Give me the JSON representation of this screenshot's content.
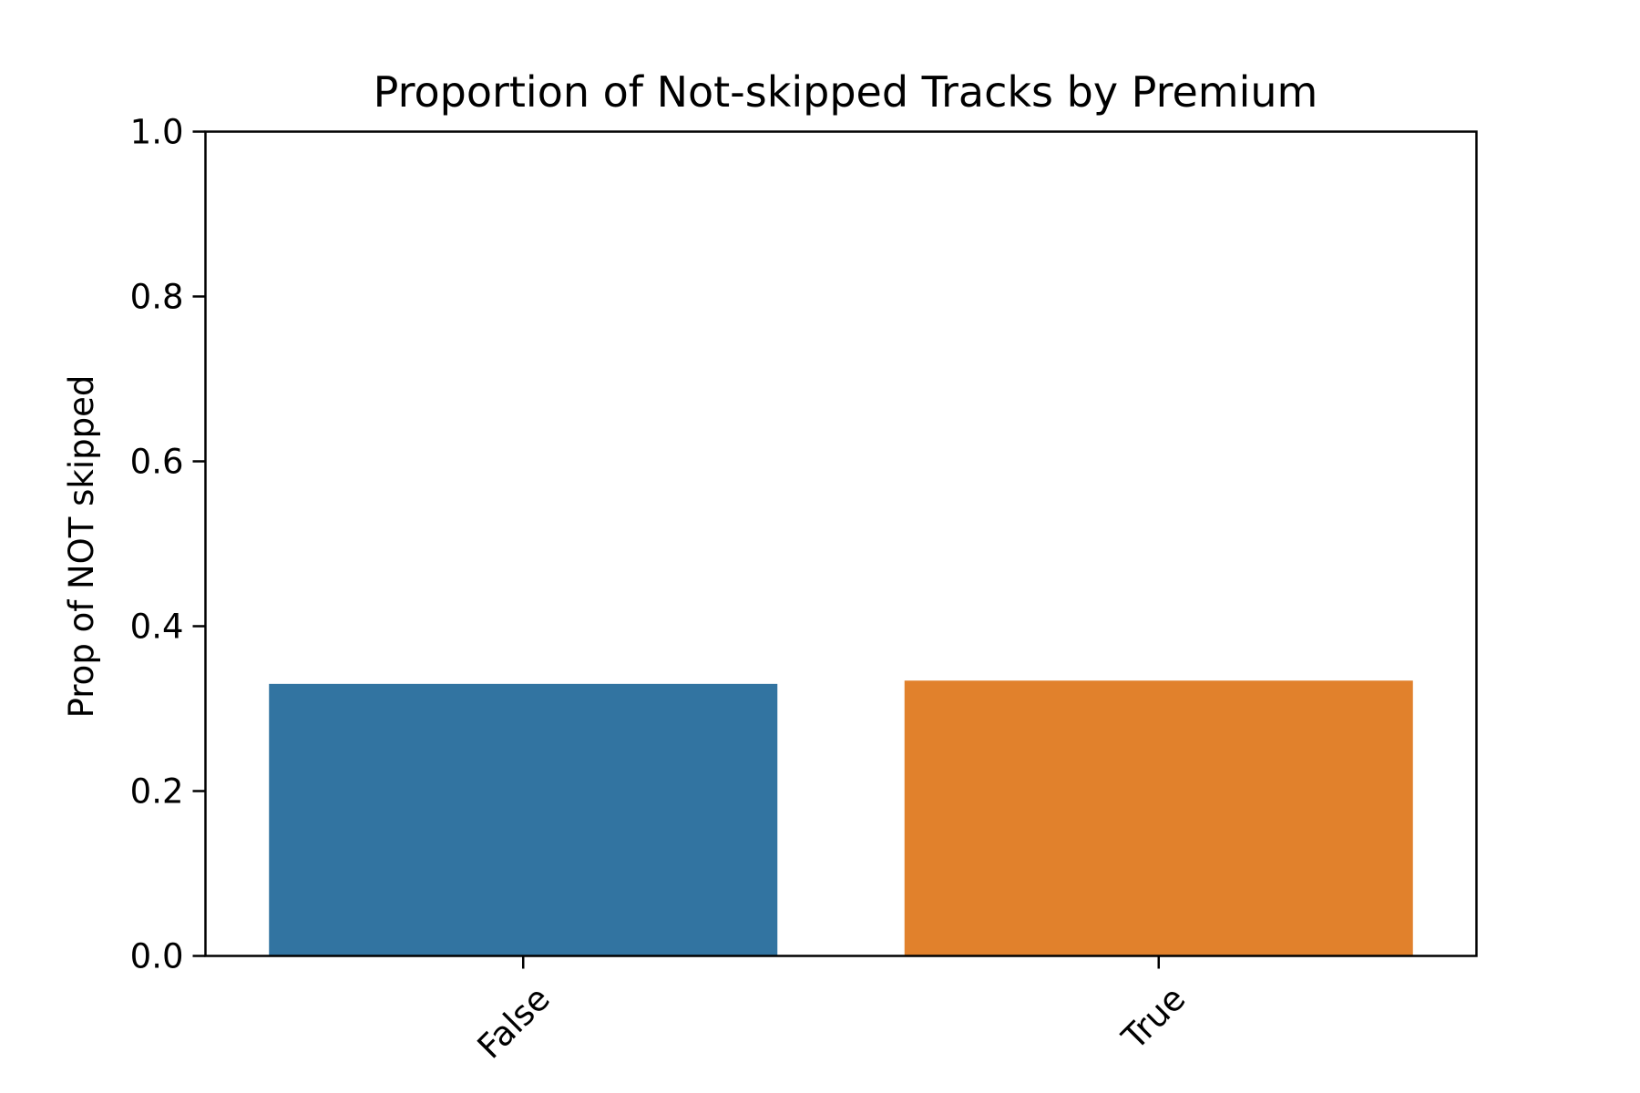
{
  "chart_data": {
    "type": "bar",
    "title": "Proportion of Not-skipped Tracks by Premium",
    "xlabel": "",
    "ylabel": "Prop of NOT skipped",
    "categories": [
      "False",
      "True"
    ],
    "values": [
      0.33,
      0.334
    ],
    "colors": [
      "#3274a1",
      "#e1812c"
    ],
    "ylim": [
      0.0,
      1.0
    ],
    "yticks": [
      "0.0",
      "0.2",
      "0.4",
      "0.6",
      "0.8",
      "1.0"
    ],
    "grid": false,
    "legend": "none"
  }
}
